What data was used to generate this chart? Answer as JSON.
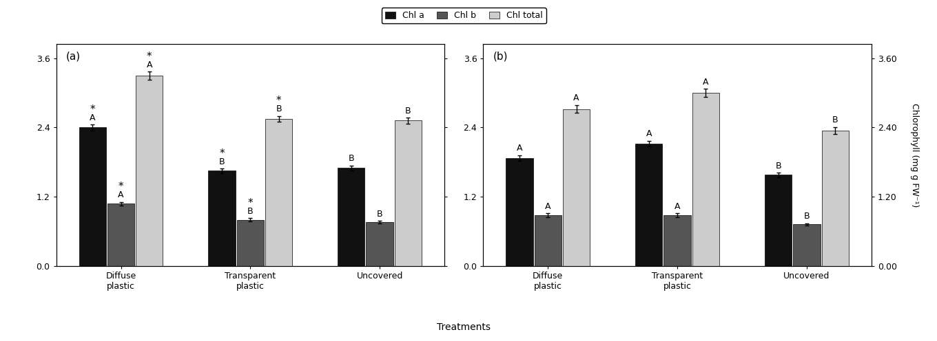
{
  "panels": [
    "(a)",
    "(b)"
  ],
  "treatments": [
    "Diffuse\nplastic",
    "Transparent\nplastic",
    "Uncovered"
  ],
  "colors": [
    "#111111",
    "#555555",
    "#cccccc"
  ],
  "bar_width": 0.22,
  "panel_a": {
    "chl_a": [
      2.4,
      1.65,
      1.7
    ],
    "chl_a_err": [
      0.05,
      0.04,
      0.04
    ],
    "chl_b": [
      1.08,
      0.8,
      0.76
    ],
    "chl_b_err": [
      0.03,
      0.03,
      0.02
    ],
    "chl_t": [
      3.3,
      2.55,
      2.52
    ],
    "chl_t_err": [
      0.07,
      0.05,
      0.05
    ],
    "letters_a": [
      "A",
      "B",
      "B"
    ],
    "letters_b": [
      "A",
      "B",
      "B"
    ],
    "letters_t": [
      "A",
      "B",
      "B"
    ],
    "stars_a": [
      "*",
      "*",
      ""
    ],
    "stars_b": [
      "*",
      "*",
      ""
    ],
    "stars_t": [
      "*",
      "*",
      ""
    ]
  },
  "panel_b": {
    "chl_a": [
      1.87,
      2.12,
      1.58
    ],
    "chl_a_err": [
      0.05,
      0.05,
      0.04
    ],
    "chl_b": [
      0.88,
      0.88,
      0.72
    ],
    "chl_b_err": [
      0.03,
      0.03,
      0.02
    ],
    "chl_t": [
      2.72,
      3.0,
      2.35
    ],
    "chl_t_err": [
      0.07,
      0.07,
      0.06
    ],
    "letters_a": [
      "A",
      "A",
      "B"
    ],
    "letters_b": [
      "A",
      "A",
      "B"
    ],
    "letters_t": [
      "A",
      "A",
      "B"
    ],
    "stars_a": [
      "",
      "",
      ""
    ],
    "stars_b": [
      "",
      "",
      ""
    ],
    "stars_t": [
      "",
      "",
      ""
    ]
  },
  "ylim": [
    0.0,
    3.84
  ],
  "yticks_left": [
    0.0,
    1.2,
    2.4,
    3.6
  ],
  "yticks_right": [
    0.0,
    1.2,
    2.4,
    3.6
  ],
  "xlabel": "Treatments",
  "ylabel_right": "Chlorophyll (mg g FW⁻¹)",
  "legend_labels": [
    "Chl a",
    "Chl b",
    "Chl total"
  ],
  "axis_fontsize": 9,
  "tick_fontsize": 9,
  "legend_fontsize": 9,
  "annot_fontsize": 9,
  "panel_label_fontsize": 10
}
